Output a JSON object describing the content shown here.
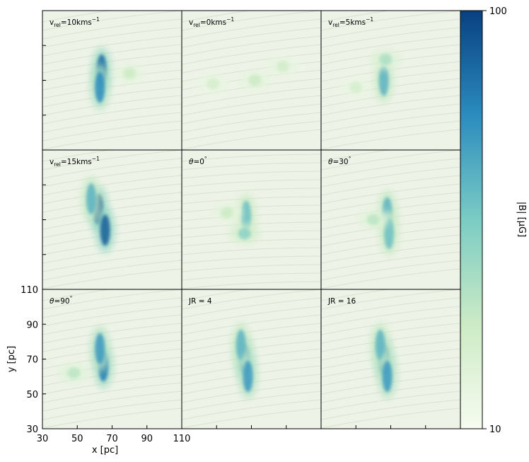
{
  "chart_data": {
    "type": "heatmap",
    "grid": false,
    "panels": [
      {
        "label_main": "v",
        "label_sub": "rel",
        "label_rest": "=10kms",
        "label_sup": "−1",
        "hotspots": [
          {
            "x": 64,
            "y": 76,
            "strength": 0.85
          },
          {
            "x": 63,
            "y": 66,
            "strength": 0.75
          },
          {
            "x": 80,
            "y": 74,
            "strength": 0.25
          }
        ]
      },
      {
        "label_main": "v",
        "label_sub": "rel",
        "label_rest": "=0kms",
        "label_sup": "−1",
        "hotspots": [
          {
            "x": 72,
            "y": 70,
            "strength": 0.25
          },
          {
            "x": 88,
            "y": 78,
            "strength": 0.22
          },
          {
            "x": 48,
            "y": 68,
            "strength": 0.2
          }
        ]
      },
      {
        "label_main": "v",
        "label_sub": "rel",
        "label_rest": "=5kms",
        "label_sup": "−1",
        "hotspots": [
          {
            "x": 66,
            "y": 70,
            "strength": 0.6
          },
          {
            "x": 67,
            "y": 82,
            "strength": 0.35
          },
          {
            "x": 50,
            "y": 66,
            "strength": 0.2
          }
        ]
      },
      {
        "label_main": "v",
        "label_sub": "rel",
        "label_rest": "=15kms",
        "label_sup": "−1",
        "hotspots": [
          {
            "x": 62,
            "y": 76,
            "strength": 0.95
          },
          {
            "x": 66,
            "y": 64,
            "strength": 0.9
          },
          {
            "x": 58,
            "y": 82,
            "strength": 0.6
          }
        ]
      },
      {
        "label_main": "θ",
        "label_sub": "",
        "label_rest": "=0",
        "label_sup": "°",
        "hotspots": [
          {
            "x": 67,
            "y": 72,
            "strength": 0.55
          },
          {
            "x": 66,
            "y": 62,
            "strength": 0.45
          },
          {
            "x": 56,
            "y": 74,
            "strength": 0.25
          }
        ]
      },
      {
        "label_main": "θ",
        "label_sub": "",
        "label_rest": "=30",
        "label_sup": "°",
        "hotspots": [
          {
            "x": 68,
            "y": 74,
            "strength": 0.6
          },
          {
            "x": 69,
            "y": 62,
            "strength": 0.55
          },
          {
            "x": 60,
            "y": 70,
            "strength": 0.3
          }
        ]
      },
      {
        "label_main": "θ",
        "label_sub": "",
        "label_rest": "=90",
        "label_sup": "°",
        "hotspots": [
          {
            "x": 65,
            "y": 66,
            "strength": 0.8
          },
          {
            "x": 63,
            "y": 76,
            "strength": 0.7
          },
          {
            "x": 48,
            "y": 62,
            "strength": 0.3
          }
        ]
      },
      {
        "label_main": "JR = 4",
        "label_sub": "",
        "label_rest": "",
        "label_sup": "",
        "hotspots": [
          {
            "x": 66,
            "y": 70,
            "strength": 0.8
          },
          {
            "x": 64,
            "y": 78,
            "strength": 0.6
          },
          {
            "x": 68,
            "y": 60,
            "strength": 0.7
          }
        ]
      },
      {
        "label_main": "JR = 16",
        "label_sub": "",
        "label_rest": "",
        "label_sup": "",
        "hotspots": [
          {
            "x": 66,
            "y": 70,
            "strength": 0.8
          },
          {
            "x": 64,
            "y": 78,
            "strength": 0.6
          },
          {
            "x": 68,
            "y": 60,
            "strength": 0.7
          }
        ]
      }
    ],
    "x_axis": {
      "label": "x [pc]",
      "range": [
        30,
        110
      ],
      "ticks": [
        30,
        50,
        70,
        90,
        110
      ]
    },
    "y_axis": {
      "label": "y [pc]",
      "range": [
        30,
        110
      ],
      "ticks": [
        30,
        50,
        70,
        90,
        110
      ]
    },
    "colorbar": {
      "label": "|B| [μG]",
      "range": [
        10,
        100
      ],
      "scale": "log",
      "tick_labels": [
        "100",
        "10"
      ],
      "colors": [
        "#f7fcf0",
        "#ccebc5",
        "#7bccc4",
        "#2b8cbe",
        "#084081"
      ]
    },
    "background_color": "#eef3e8"
  }
}
